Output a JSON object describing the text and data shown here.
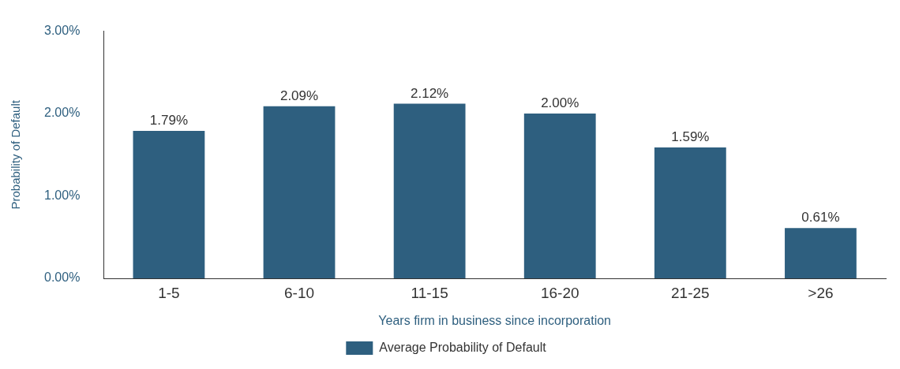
{
  "chart_data": {
    "type": "bar",
    "xlabel": "Years firm in business since incorporation",
    "ylabel": "Probability of Default",
    "categories": [
      "1-5",
      "6-10",
      "11-15",
      "16-20",
      "21-25",
      ">26"
    ],
    "series": [
      {
        "name": "Average Probability of Default",
        "color": "#2e5f7f",
        "values": [
          1.79,
          2.09,
          2.12,
          2.0,
          1.59,
          0.61
        ],
        "value_labels": [
          "1.79%",
          "2.09%",
          "2.12%",
          "2.00%",
          "1.59%",
          "0.61%"
        ]
      }
    ],
    "ylim": [
      0,
      3
    ],
    "yticks": [
      {
        "value": 0,
        "label": "0.00%"
      },
      {
        "value": 1,
        "label": "1.00%"
      },
      {
        "value": 2,
        "label": "2.00%"
      },
      {
        "value": 3,
        "label": "3.00%"
      }
    ],
    "grid": false,
    "legend": "bottom"
  }
}
